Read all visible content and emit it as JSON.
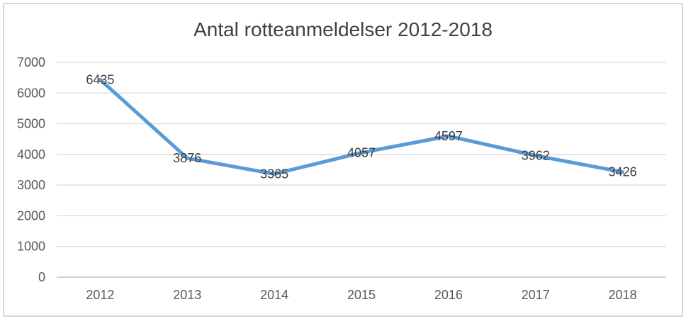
{
  "chart_data": {
    "type": "line",
    "title": "Antal rotteanmeldelser 2012-2018",
    "categories": [
      "2012",
      "2013",
      "2014",
      "2015",
      "2016",
      "2017",
      "2018"
    ],
    "values": [
      6435,
      3876,
      3365,
      4057,
      4597,
      3962,
      3426
    ],
    "xlabel": "",
    "ylabel": "",
    "ylim": [
      0,
      7000
    ],
    "ytick_interval": 1000,
    "ytick_labels": [
      "0",
      "1000",
      "2000",
      "3000",
      "4000",
      "5000",
      "6000",
      "7000"
    ],
    "grid": "horizontal",
    "legend": "none",
    "data_labels_visible": true,
    "colors": {
      "line": "#5B9BD5",
      "gridline": "#D9D9D9",
      "axis_line": "#BFBFBF",
      "tick_text": "#595959",
      "data_label_text": "#404040",
      "title_text": "#404040",
      "frame_border": "#D9D9D9",
      "background": "#FFFFFF"
    }
  }
}
